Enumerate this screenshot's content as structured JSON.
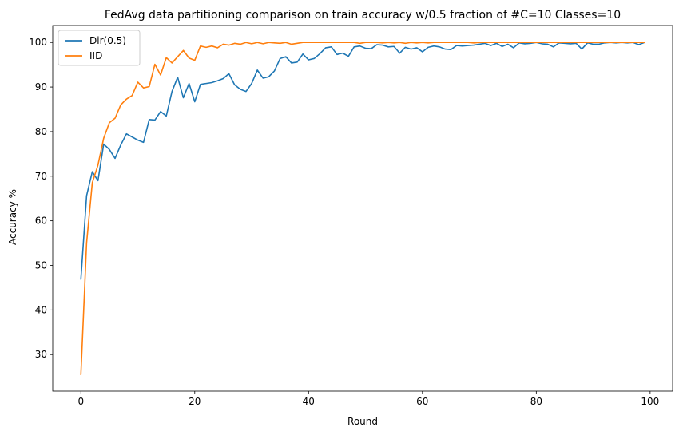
{
  "chart_data": {
    "type": "line",
    "title": "FedAvg data partitioning comparison on train accuracy w/0.5 fraction of #C=10 Classes=10",
    "xlabel": "Round",
    "ylabel": "Accuracy %",
    "xlim": [
      -4.95,
      103.95
    ],
    "ylim": [
      21.8,
      103.8
    ],
    "xticks": [
      0,
      20,
      40,
      60,
      80,
      100
    ],
    "yticks": [
      30,
      40,
      50,
      60,
      70,
      80,
      90,
      100
    ],
    "grid": false,
    "legend": "top-left",
    "series": [
      {
        "name": "Dir(0.5)",
        "color": "#1f77b4",
        "x": [
          0,
          1,
          2,
          3,
          4,
          5,
          6,
          7,
          8,
          9,
          10,
          11,
          12,
          13,
          14,
          15,
          16,
          17,
          18,
          19,
          20,
          21,
          22,
          23,
          24,
          25,
          26,
          27,
          28,
          29,
          30,
          31,
          32,
          33,
          34,
          35,
          36,
          37,
          38,
          39,
          40,
          41,
          42,
          43,
          44,
          45,
          46,
          47,
          48,
          49,
          50,
          51,
          52,
          53,
          54,
          55,
          56,
          57,
          58,
          59,
          60,
          61,
          62,
          63,
          64,
          65,
          66,
          67,
          68,
          69,
          70,
          71,
          72,
          73,
          74,
          75,
          76,
          77,
          78,
          79,
          80,
          81,
          82,
          83,
          84,
          85,
          86,
          87,
          88,
          89,
          90,
          91,
          92,
          93,
          94,
          95,
          96,
          97,
          98,
          99
        ],
        "values": [
          46.9,
          65.6,
          71.0,
          69.0,
          77.2,
          76.0,
          74.0,
          77.0,
          79.5,
          78.8,
          78.1,
          77.6,
          82.7,
          82.6,
          84.5,
          83.5,
          89.0,
          92.2,
          87.6,
          90.8,
          86.7,
          90.6,
          90.8,
          91.0,
          91.4,
          91.9,
          93.0,
          90.5,
          89.5,
          89.0,
          90.8,
          93.8,
          92.0,
          92.3,
          93.6,
          96.4,
          96.8,
          95.4,
          95.6,
          97.4,
          96.1,
          96.4,
          97.5,
          98.8,
          99.0,
          97.3,
          97.6,
          96.9,
          99.0,
          99.2,
          98.7,
          98.6,
          99.5,
          99.4,
          99.0,
          99.1,
          97.6,
          98.9,
          98.5,
          98.8,
          97.9,
          98.9,
          99.2,
          99.0,
          98.5,
          98.4,
          99.3,
          99.2,
          99.3,
          99.4,
          99.6,
          99.8,
          99.3,
          99.8,
          99.1,
          99.6,
          98.8,
          99.9,
          99.7,
          99.8,
          100.0,
          99.7,
          99.6,
          99.0,
          99.9,
          99.8,
          99.7,
          99.8,
          98.5,
          99.9,
          99.6,
          99.6,
          99.9,
          100.0,
          99.9,
          100.0,
          99.9,
          100.0,
          99.5,
          100.0
        ]
      },
      {
        "name": "IID",
        "color": "#ff7f0e",
        "x": [
          0,
          1,
          2,
          3,
          4,
          5,
          6,
          7,
          8,
          9,
          10,
          11,
          12,
          13,
          14,
          15,
          16,
          17,
          18,
          19,
          20,
          21,
          22,
          23,
          24,
          25,
          26,
          27,
          28,
          29,
          30,
          31,
          32,
          33,
          34,
          35,
          36,
          37,
          38,
          39,
          40,
          41,
          42,
          43,
          44,
          45,
          46,
          47,
          48,
          49,
          50,
          51,
          52,
          53,
          54,
          55,
          56,
          57,
          58,
          59,
          60,
          61,
          62,
          63,
          64,
          65,
          66,
          67,
          68,
          69,
          70,
          71,
          72,
          73,
          74,
          75,
          76,
          77,
          78,
          79,
          80,
          81,
          82,
          83,
          84,
          85,
          86,
          87,
          88,
          89,
          90,
          91,
          92,
          93,
          94,
          95,
          96,
          97,
          98,
          99
        ],
        "values": [
          25.5,
          55.0,
          68.5,
          72.5,
          78.5,
          82.0,
          83.0,
          86.0,
          87.3,
          88.1,
          91.1,
          89.8,
          90.1,
          95.1,
          92.7,
          96.6,
          95.4,
          96.8,
          98.2,
          96.5,
          96.0,
          99.2,
          98.9,
          99.2,
          98.8,
          99.6,
          99.4,
          99.8,
          99.6,
          100.0,
          99.7,
          100.0,
          99.7,
          100.0,
          99.9,
          99.8,
          100.0,
          99.6,
          99.8,
          100.0,
          100.0,
          100.0,
          100.0,
          100.0,
          100.0,
          100.0,
          100.0,
          100.0,
          100.0,
          99.8,
          100.0,
          100.0,
          100.0,
          99.9,
          100.0,
          99.9,
          100.0,
          99.8,
          100.0,
          99.9,
          100.0,
          99.9,
          100.0,
          100.0,
          100.0,
          100.0,
          100.0,
          100.0,
          100.0,
          99.9,
          100.0,
          100.0,
          100.0,
          100.0,
          100.0,
          100.0,
          100.0,
          100.0,
          100.0,
          100.0,
          100.0,
          100.0,
          100.0,
          100.0,
          100.0,
          100.0,
          100.0,
          100.0,
          100.0,
          100.0,
          100.0,
          100.0,
          100.0,
          100.0,
          100.0,
          100.0,
          100.0,
          100.0,
          100.0,
          100.0
        ]
      }
    ]
  }
}
